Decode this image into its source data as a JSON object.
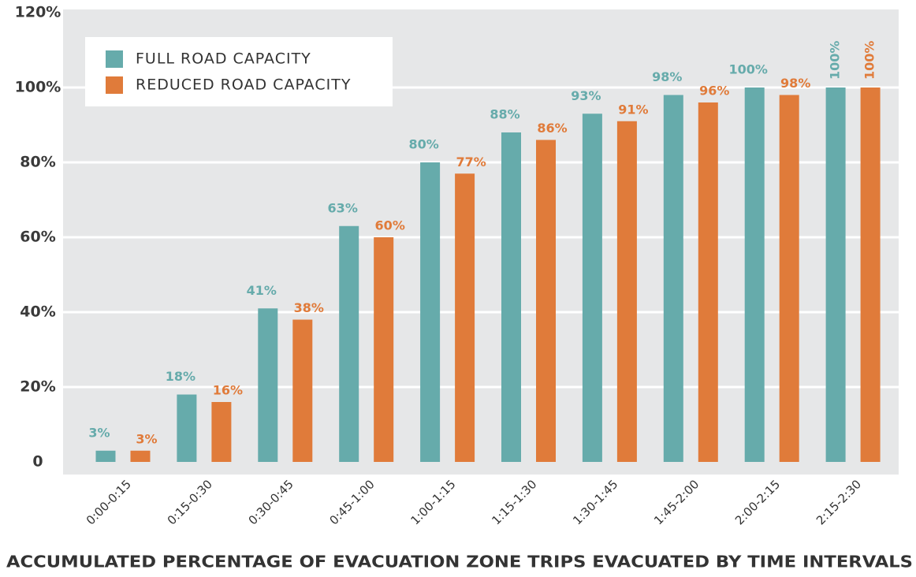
{
  "chart_data": {
    "type": "bar",
    "x_label": "ACCUMULATED PERCENTAGE OF EVACUATION ZONE TRIPS EVACUATED BY TIME INTERVALS",
    "categories": [
      "0:00-0:15",
      "0:15-0:30",
      "0:30-0:45",
      "0:45-1:00",
      "1:00-1:15",
      "1:15-1:30",
      "1:30-1:45",
      "1:45-2:00",
      "2:00-2:15",
      "2:15-2:30"
    ],
    "series": [
      {
        "name": "FULL ROAD CAPACITY",
        "color": "#66abab",
        "values": [
          3,
          18,
          41,
          63,
          80,
          88,
          93,
          98,
          100,
          100
        ],
        "value_labels": [
          "3%",
          "18%",
          "41%",
          "63%",
          "80%",
          "88%",
          "93%",
          "98%",
          "100%",
          "100%"
        ]
      },
      {
        "name": "REDUCED ROAD CAPACITY",
        "color": "#e07b3a",
        "values": [
          3,
          16,
          38,
          60,
          77,
          86,
          91,
          96,
          98,
          100
        ],
        "value_labels": [
          "3%",
          "16%",
          "38%",
          "60%",
          "77%",
          "86%",
          "91%",
          "96%",
          "98%",
          "100%"
        ]
      }
    ],
    "ylim": [
      0,
      120
    ],
    "yticks": [
      0,
      {
        "value": 20,
        "label": "20%"
      },
      {
        "value": 40,
        "label": "40%"
      },
      {
        "value": 60,
        "label": "60%"
      },
      {
        "value": 80,
        "label": "80%"
      },
      {
        "value": 100,
        "label": "100%"
      },
      {
        "value": 120,
        "label": "120%"
      }
    ],
    "grid": true,
    "legend": "upper left"
  }
}
